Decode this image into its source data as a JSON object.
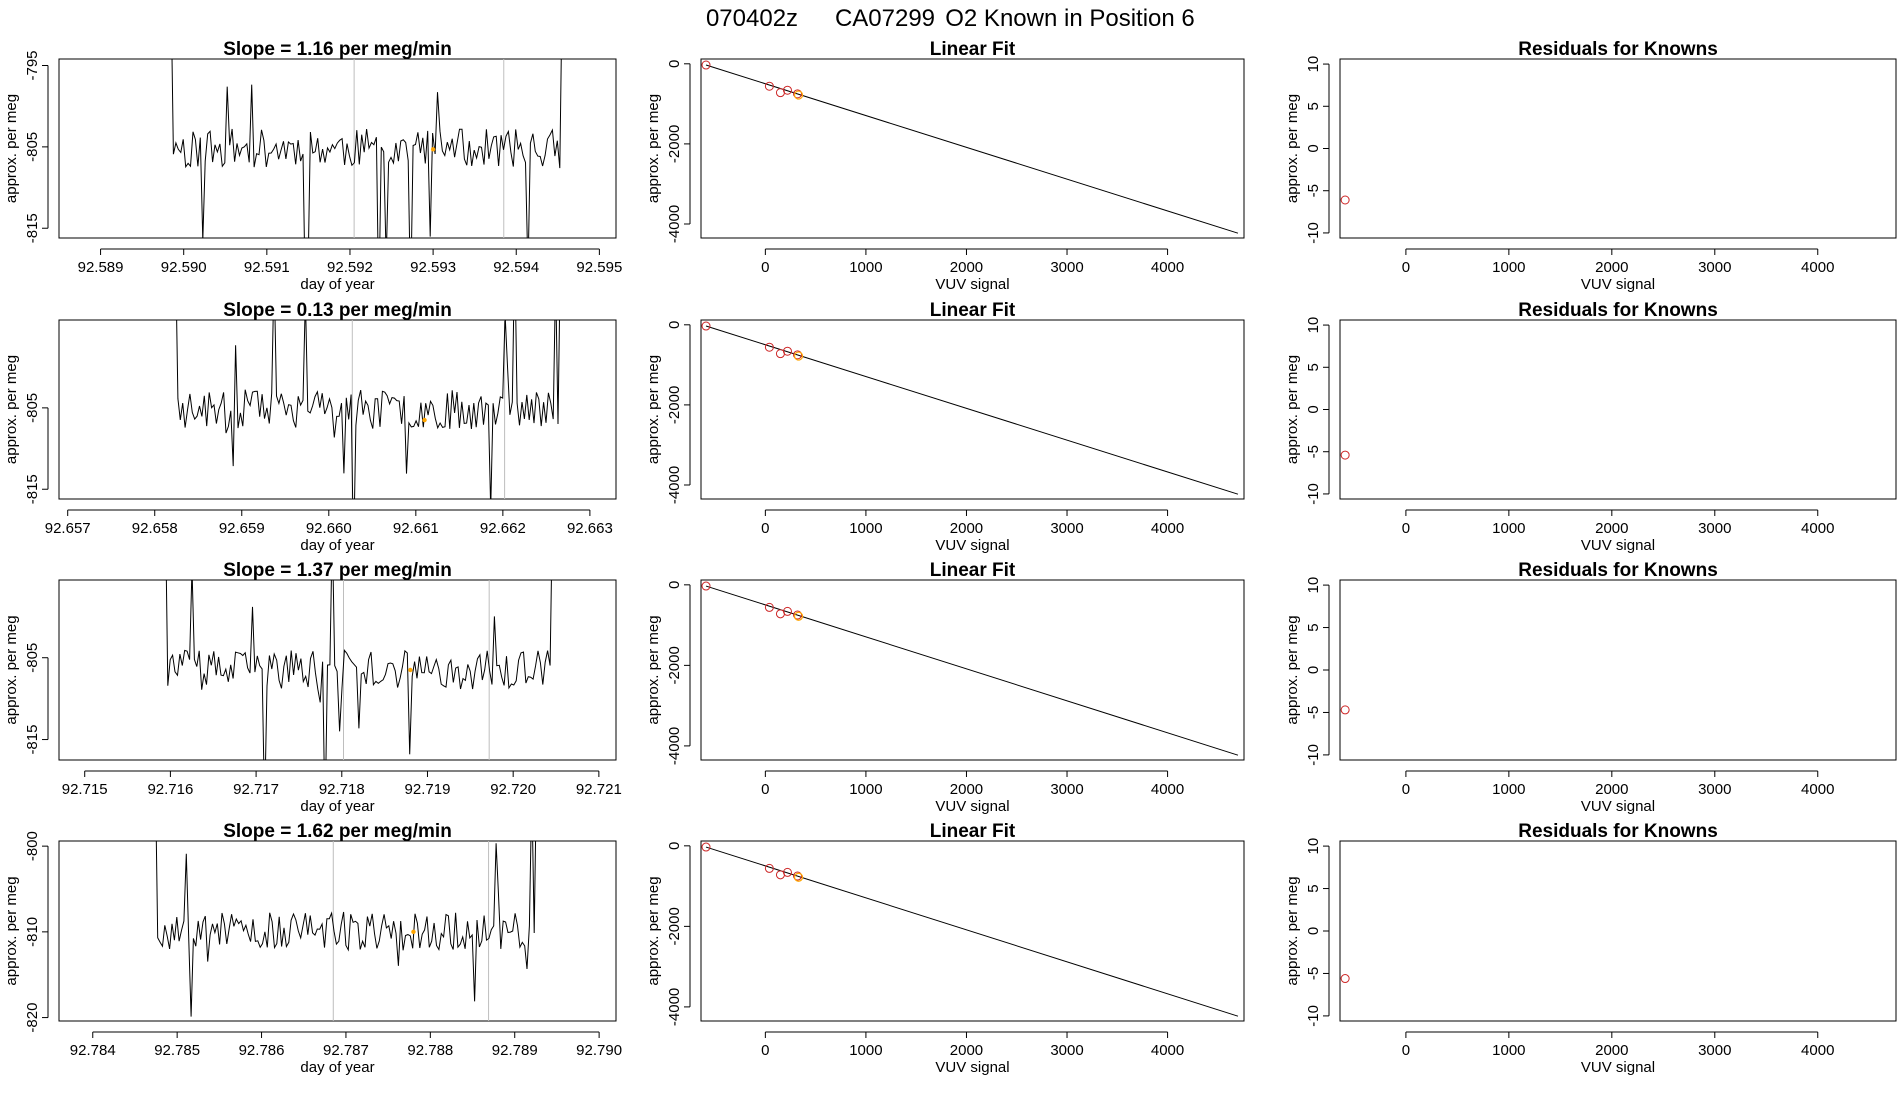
{
  "page": {
    "title_parts": [
      "070402z",
      "CA07299",
      "O2 Known in Position  6"
    ]
  },
  "colors": {
    "line": "#000000",
    "frame": "#000000",
    "vline": "#bebebe",
    "point": "#cd2626",
    "highlight": "#ffa500",
    "background": "#ffffff"
  },
  "chart_data": [
    {
      "type": "line",
      "panel": "time-series",
      "row": 1,
      "title": "Slope =  1.16  per meg/min",
      "xlabel": "day of year",
      "ylabel": "approx. per meg",
      "xlim": [
        92.5885,
        92.5952
      ],
      "ylim": [
        -816.2,
        -794.2
      ],
      "xticks": [
        92.589,
        92.59,
        92.591,
        92.592,
        92.593,
        92.594,
        92.595
      ],
      "xtick_labels": [
        "92.589",
        "92.590",
        "92.591",
        "92.592",
        "92.593",
        "92.594",
        "92.595"
      ],
      "yticks": [
        -815,
        -805,
        -795
      ],
      "ytick_labels": [
        "-815",
        "-805",
        "-795"
      ],
      "vlines": [
        92.59205,
        92.59385
      ],
      "series_range": [
        92.5897,
        92.5947
      ],
      "seed": 11,
      "highlight": [
        {
          "x": 92.593,
          "y": -805.3
        }
      ]
    },
    {
      "type": "scatter+line",
      "panel": "linear-fit",
      "row": 1,
      "title": "Linear Fit",
      "xlabel": "VUV signal",
      "ylabel": "approx. per meg",
      "xlim": [
        -640,
        4760
      ],
      "ylim": [
        -4350,
        120
      ],
      "xticks": [
        0,
        1000,
        2000,
        3000,
        4000
      ],
      "xtick_labels": [
        "0",
        "1000",
        "2000",
        "3000",
        "4000"
      ],
      "yticks": [
        -4000,
        -2000,
        0
      ],
      "ytick_labels": [
        "-4000",
        "-2000",
        "0"
      ],
      "points": [
        [
          -590,
          -30
        ],
        [
          40,
          -560
        ],
        [
          150,
          -720
        ],
        [
          220,
          -660
        ],
        [
          320,
          -750
        ]
      ],
      "highlight": [
        [
          330,
          -780
        ]
      ],
      "fit_line": [
        [
          -590,
          -30
        ],
        [
          4700,
          -4230
        ]
      ]
    },
    {
      "type": "scatter",
      "panel": "residuals",
      "row": 1,
      "title": "Residuals for Knowns",
      "xlabel": "VUV signal",
      "ylabel": "approx. per meg",
      "xlim": [
        -640,
        4760
      ],
      "ylim": [
        -10.6,
        10.6
      ],
      "xticks": [
        0,
        1000,
        2000,
        3000,
        4000
      ],
      "xtick_labels": [
        "0",
        "1000",
        "2000",
        "3000",
        "4000"
      ],
      "yticks": [
        -10,
        -5,
        0,
        5,
        10
      ],
      "ytick_labels": [
        "-10",
        "-5",
        "0",
        "5",
        "10"
      ],
      "points": [
        [
          -590,
          -6.1
        ]
      ]
    },
    {
      "type": "line",
      "panel": "time-series",
      "row": 2,
      "title": "Slope =  0.13  per meg/min",
      "xlabel": "day of year",
      "ylabel": "approx. per meg",
      "xlim": [
        92.6569,
        92.6633
      ],
      "ylim": [
        -816.2,
        -794.2
      ],
      "xticks": [
        92.657,
        92.658,
        92.659,
        92.66,
        92.661,
        92.662,
        92.663
      ],
      "xtick_labels": [
        "92.657",
        "92.658",
        "92.659",
        "92.660",
        "92.661",
        "92.662",
        "92.663"
      ],
      "yticks": [
        -815,
        -805
      ],
      "ytick_labels": [
        "-815",
        "-805"
      ],
      "vlines": [
        92.66027,
        92.66202
      ],
      "series_range": [
        92.6581,
        92.6628
      ],
      "seed": 23,
      "highlight": [
        {
          "x": 92.6611,
          "y": -806.5
        }
      ]
    },
    {
      "type": "scatter+line",
      "panel": "linear-fit",
      "row": 2,
      "title": "Linear Fit",
      "xlabel": "VUV signal",
      "ylabel": "approx. per meg",
      "xlim": [
        -640,
        4760
      ],
      "ylim": [
        -4350,
        120
      ],
      "xticks": [
        0,
        1000,
        2000,
        3000,
        4000
      ],
      "xtick_labels": [
        "0",
        "1000",
        "2000",
        "3000",
        "4000"
      ],
      "yticks": [
        -4000,
        -2000,
        0
      ],
      "ytick_labels": [
        "-4000",
        "-2000",
        "0"
      ],
      "points": [
        [
          -590,
          -30
        ],
        [
          40,
          -560
        ],
        [
          150,
          -720
        ],
        [
          220,
          -660
        ],
        [
          320,
          -750
        ]
      ],
      "highlight": [
        [
          330,
          -780
        ]
      ],
      "fit_line": [
        [
          -590,
          -30
        ],
        [
          4700,
          -4230
        ]
      ]
    },
    {
      "type": "scatter",
      "panel": "residuals",
      "row": 2,
      "title": "Residuals for Knowns",
      "xlabel": "VUV signal",
      "ylabel": "approx. per meg",
      "xlim": [
        -640,
        4760
      ],
      "ylim": [
        -10.6,
        10.6
      ],
      "xticks": [
        0,
        1000,
        2000,
        3000,
        4000
      ],
      "xtick_labels": [
        "0",
        "1000",
        "2000",
        "3000",
        "4000"
      ],
      "yticks": [
        -10,
        -5,
        0,
        5,
        10
      ],
      "ytick_labels": [
        "-10",
        "-5",
        "0",
        "5",
        "10"
      ],
      "points": [
        [
          -590,
          -5.4
        ]
      ]
    },
    {
      "type": "line",
      "panel": "time-series",
      "row": 3,
      "title": "Slope =  1.37  per meg/min",
      "xlabel": "day of year",
      "ylabel": "approx. per meg",
      "xlim": [
        92.7147,
        92.7212
      ],
      "ylim": [
        -817.5,
        -795.5
      ],
      "xticks": [
        92.715,
        92.716,
        92.717,
        92.718,
        92.719,
        92.72,
        92.721
      ],
      "xtick_labels": [
        "92.715",
        "92.716",
        "92.717",
        "92.718",
        "92.719",
        "92.720",
        "92.721"
      ],
      "yticks": [
        -815,
        -805
      ],
      "ytick_labels": [
        "-815",
        "-805"
      ],
      "vlines": [
        92.71802,
        92.71972
      ],
      "series_range": [
        92.7158,
        92.7206
      ],
      "seed": 37,
      "highlight": [
        {
          "x": 92.7188,
          "y": -806.5
        }
      ]
    },
    {
      "type": "scatter+line",
      "panel": "linear-fit",
      "row": 3,
      "title": "Linear Fit",
      "xlabel": "VUV signal",
      "ylabel": "approx. per meg",
      "xlim": [
        -640,
        4760
      ],
      "ylim": [
        -4350,
        120
      ],
      "xticks": [
        0,
        1000,
        2000,
        3000,
        4000
      ],
      "xtick_labels": [
        "0",
        "1000",
        "2000",
        "3000",
        "4000"
      ],
      "yticks": [
        -4000,
        -2000,
        0
      ],
      "ytick_labels": [
        "-4000",
        "-2000",
        "0"
      ],
      "points": [
        [
          -590,
          -30
        ],
        [
          40,
          -560
        ],
        [
          150,
          -720
        ],
        [
          220,
          -660
        ],
        [
          320,
          -750
        ]
      ],
      "highlight": [
        [
          330,
          -780
        ]
      ],
      "fit_line": [
        [
          -590,
          -30
        ],
        [
          4700,
          -4230
        ]
      ]
    },
    {
      "type": "scatter",
      "panel": "residuals",
      "row": 3,
      "title": "Residuals for Knowns",
      "xlabel": "VUV signal",
      "ylabel": "approx. per meg",
      "xlim": [
        -640,
        4760
      ],
      "ylim": [
        -10.6,
        10.6
      ],
      "xticks": [
        0,
        1000,
        2000,
        3000,
        4000
      ],
      "xtick_labels": [
        "0",
        "1000",
        "2000",
        "3000",
        "4000"
      ],
      "yticks": [
        -10,
        -5,
        0,
        5,
        10
      ],
      "ytick_labels": [
        "-10",
        "-5",
        "0",
        "5",
        "10"
      ],
      "points": [
        [
          -590,
          -4.7
        ]
      ]
    },
    {
      "type": "line",
      "panel": "time-series",
      "row": 4,
      "title": "Slope =  1.62  per meg/min",
      "xlabel": "day of year",
      "ylabel": "approx. per meg",
      "xlim": [
        92.7836,
        92.7902
      ],
      "ylim": [
        -820.4,
        -799.4
      ],
      "xticks": [
        92.784,
        92.785,
        92.786,
        92.787,
        92.788,
        92.789,
        92.79
      ],
      "xtick_labels": [
        "92.784",
        "92.785",
        "92.786",
        "92.787",
        "92.788",
        "92.789",
        "92.790"
      ],
      "yticks": [
        -820,
        -810,
        -800
      ],
      "ytick_labels": [
        "-820",
        "-810",
        "-800"
      ],
      "vlines": [
        92.78685,
        92.78869
      ],
      "series_range": [
        92.7846,
        92.7894
      ],
      "seed": 53,
      "highlight": [
        {
          "x": 92.7878,
          "y": -810.0
        }
      ]
    },
    {
      "type": "scatter+line",
      "panel": "linear-fit",
      "row": 4,
      "title": "Linear Fit",
      "xlabel": "VUV signal",
      "ylabel": "approx. per meg",
      "xlim": [
        -640,
        4760
      ],
      "ylim": [
        -4350,
        120
      ],
      "xticks": [
        0,
        1000,
        2000,
        3000,
        4000
      ],
      "xtick_labels": [
        "0",
        "1000",
        "2000",
        "3000",
        "4000"
      ],
      "yticks": [
        -4000,
        -2000,
        0
      ],
      "ytick_labels": [
        "-4000",
        "-2000",
        "0"
      ],
      "points": [
        [
          -590,
          -30
        ],
        [
          40,
          -560
        ],
        [
          150,
          -720
        ],
        [
          220,
          -660
        ],
        [
          320,
          -750
        ]
      ],
      "highlight": [
        [
          330,
          -780
        ]
      ],
      "fit_line": [
        [
          -590,
          -30
        ],
        [
          4700,
          -4230
        ]
      ]
    },
    {
      "type": "scatter",
      "panel": "residuals",
      "row": 4,
      "title": "Residuals for Knowns",
      "xlabel": "VUV signal",
      "ylabel": "approx. per meg",
      "xlim": [
        -640,
        4760
      ],
      "ylim": [
        -10.6,
        10.6
      ],
      "xticks": [
        0,
        1000,
        2000,
        3000,
        4000
      ],
      "xtick_labels": [
        "0",
        "1000",
        "2000",
        "3000",
        "4000"
      ],
      "yticks": [
        -10,
        -5,
        0,
        5,
        10
      ],
      "ytick_labels": [
        "-10",
        "-5",
        "0",
        "5",
        "10"
      ],
      "points": [
        [
          -590,
          -5.6
        ]
      ]
    }
  ]
}
